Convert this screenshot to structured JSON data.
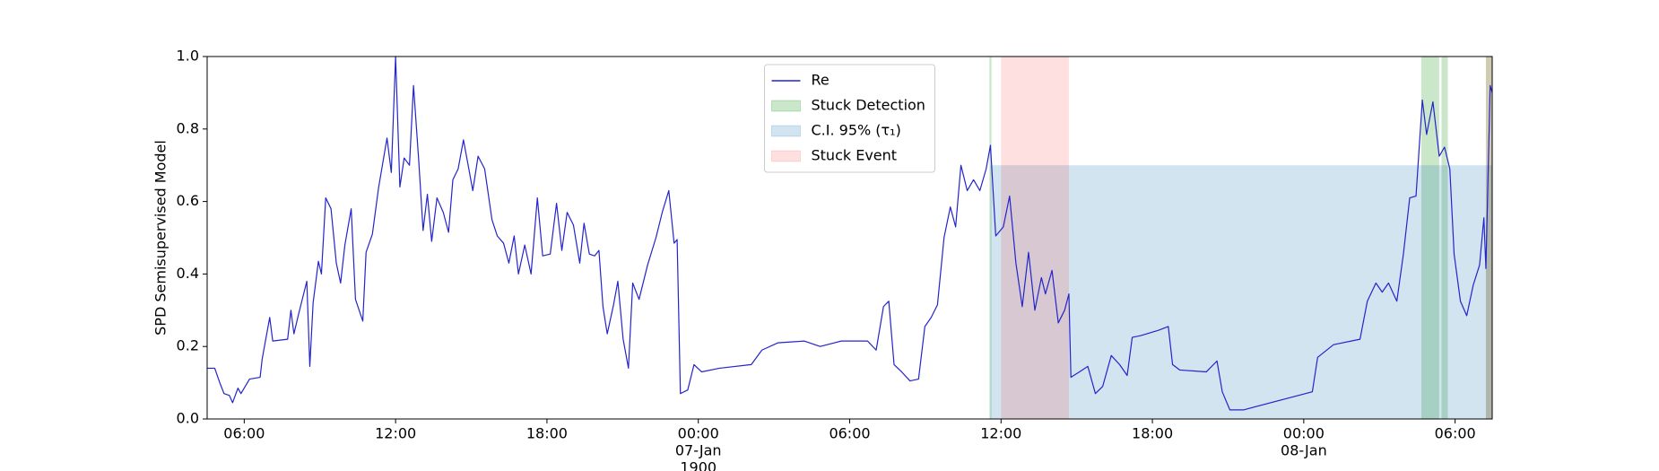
{
  "chart_data": {
    "type": "line",
    "ylabel": "SPD Semisupervised Model",
    "xlim": [
      4.53,
      55.47
    ],
    "xticks": [
      {
        "value": 6,
        "label": "06:00"
      },
      {
        "value": 12,
        "label": "12:00"
      },
      {
        "value": 18,
        "label": "18:00"
      },
      {
        "value": 24,
        "label": [
          "00:00",
          "07-Jan",
          "1900"
        ]
      },
      {
        "value": 30,
        "label": "06:00"
      },
      {
        "value": 36,
        "label": "12:00"
      },
      {
        "value": 42,
        "label": "18:00"
      },
      {
        "value": 48,
        "label": [
          "00:00",
          "08-Jan"
        ]
      },
      {
        "value": 54,
        "label": "06:00"
      }
    ],
    "ylim": [
      0,
      1
    ],
    "yticks": [
      {
        "value": 0,
        "label": "0.0"
      },
      0.2,
      0.4,
      0.6,
      0.8,
      {
        "value": 1,
        "label": "1.0"
      }
    ],
    "legend": "upper center",
    "x": [
      4.53,
      4.83,
      5.03,
      5.2,
      5.41,
      5.54,
      5.75,
      5.87,
      6.21,
      6.63,
      6.71,
      6.84,
      7.01,
      7.13,
      7.72,
      7.85,
      7.97,
      8.14,
      8.48,
      8.6,
      8.73,
      8.94,
      9.06,
      9.23,
      9.44,
      9.65,
      9.82,
      9.99,
      10.24,
      10.41,
      10.7,
      10.83,
      11.08,
      11.33,
      11.66,
      11.83,
      12,
      12.17,
      12.34,
      12.55,
      12.71,
      12.92,
      13.09,
      13.26,
      13.43,
      13.64,
      13.89,
      14.1,
      14.27,
      14.48,
      14.69,
      14.85,
      15.06,
      15.27,
      15.53,
      15.82,
      16.03,
      16.28,
      16.49,
      16.7,
      16.87,
      17.12,
      17.37,
      17.62,
      17.83,
      18.13,
      18.38,
      18.59,
      18.8,
      19.05,
      19.3,
      19.47,
      19.68,
      19.89,
      20.06,
      20.22,
      20.39,
      20.64,
      20.81,
      21.02,
      21.23,
      21.4,
      21.65,
      21.99,
      22.32,
      22.57,
      22.83,
      23.04,
      23.16,
      23.29,
      23.58,
      23.83,
      24.13,
      24.84,
      26.1,
      26.52,
      27.15,
      28.2,
      28.83,
      29.67,
      30.71,
      31.05,
      31.34,
      31.55,
      31.76,
      32.06,
      32.39,
      32.73,
      32.98,
      33.23,
      33.48,
      33.74,
      33.99,
      34.2,
      34.41,
      34.66,
      34.91,
      35.16,
      35.41,
      35.58,
      35.79,
      36.09,
      36.34,
      36.59,
      36.84,
      37.09,
      37.34,
      37.6,
      37.76,
      38.02,
      38.27,
      38.52,
      38.69,
      38.77,
      39.11,
      39.44,
      39.74,
      40.03,
      40.37,
      40.7,
      41,
      41.2,
      41.54,
      42.25,
      42.63,
      42.8,
      43.09,
      44.14,
      44.56,
      44.77,
      45.07,
      45.61,
      48.34,
      48.55,
      49.18,
      50.23,
      50.52,
      50.86,
      51.11,
      51.36,
      51.69,
      51.95,
      52.2,
      52.45,
      52.7,
      52.87,
      53.12,
      53.37,
      53.58,
      53.79,
      53.96,
      54.21,
      54.46,
      54.72,
      54.97,
      55.14,
      55.22,
      55.39,
      55.47
    ],
    "series": [
      {
        "name": "Re",
        "color": "#2424cc",
        "values": [
          0.14,
          0.14,
          0.1,
          0.07,
          0.065,
          0.045,
          0.085,
          0.07,
          0.11,
          0.115,
          0.165,
          0.215,
          0.28,
          0.215,
          0.22,
          0.3,
          0.235,
          0.285,
          0.38,
          0.145,
          0.32,
          0.435,
          0.4,
          0.61,
          0.58,
          0.43,
          0.375,
          0.48,
          0.58,
          0.33,
          0.27,
          0.46,
          0.51,
          0.64,
          0.775,
          0.68,
          1.0,
          0.64,
          0.72,
          0.7,
          0.92,
          0.71,
          0.52,
          0.62,
          0.49,
          0.61,
          0.57,
          0.515,
          0.66,
          0.69,
          0.77,
          0.71,
          0.63,
          0.725,
          0.69,
          0.55,
          0.505,
          0.485,
          0.43,
          0.505,
          0.4,
          0.48,
          0.4,
          0.61,
          0.45,
          0.455,
          0.595,
          0.465,
          0.57,
          0.535,
          0.43,
          0.54,
          0.455,
          0.45,
          0.465,
          0.31,
          0.235,
          0.315,
          0.38,
          0.22,
          0.14,
          0.375,
          0.33,
          0.425,
          0.5,
          0.57,
          0.63,
          0.485,
          0.495,
          0.07,
          0.08,
          0.15,
          0.13,
          0.14,
          0.15,
          0.19,
          0.21,
          0.215,
          0.2,
          0.215,
          0.215,
          0.19,
          0.31,
          0.325,
          0.15,
          0.13,
          0.105,
          0.11,
          0.255,
          0.28,
          0.315,
          0.5,
          0.585,
          0.53,
          0.7,
          0.63,
          0.66,
          0.63,
          0.69,
          0.755,
          0.505,
          0.53,
          0.615,
          0.43,
          0.31,
          0.46,
          0.3,
          0.39,
          0.345,
          0.41,
          0.265,
          0.3,
          0.345,
          0.115,
          0.13,
          0.145,
          0.07,
          0.09,
          0.175,
          0.15,
          0.12,
          0.225,
          0.23,
          0.245,
          0.255,
          0.15,
          0.135,
          0.13,
          0.16,
          0.075,
          0.025,
          0.025,
          0.075,
          0.17,
          0.205,
          0.22,
          0.325,
          0.375,
          0.35,
          0.375,
          0.325,
          0.455,
          0.61,
          0.615,
          0.88,
          0.785,
          0.875,
          0.725,
          0.75,
          0.69,
          0.455,
          0.325,
          0.285,
          0.37,
          0.425,
          0.555,
          0.415,
          0.92,
          0.9
        ]
      }
    ],
    "spans": [
      {
        "name": "Stuck Detection",
        "color": "#2ca02c",
        "opacity": 0.25,
        "ranges": [
          [
            35.54,
            35.62
          ],
          [
            52.66,
            53.37
          ],
          [
            53.46,
            53.71
          ],
          [
            55.22,
            55.47
          ]
        ]
      },
      {
        "name": "C.I. 95% (τ₁)",
        "color": "#1f77b4",
        "opacity": 0.2,
        "y": [
          0,
          0.7
        ],
        "ranges": [
          [
            35.58,
            55.47
          ]
        ]
      },
      {
        "name": "Stuck Event",
        "color": "#ff0000",
        "opacity": 0.12,
        "ranges": [
          [
            36.0,
            38.69
          ],
          [
            55.22,
            55.47
          ]
        ]
      }
    ]
  }
}
